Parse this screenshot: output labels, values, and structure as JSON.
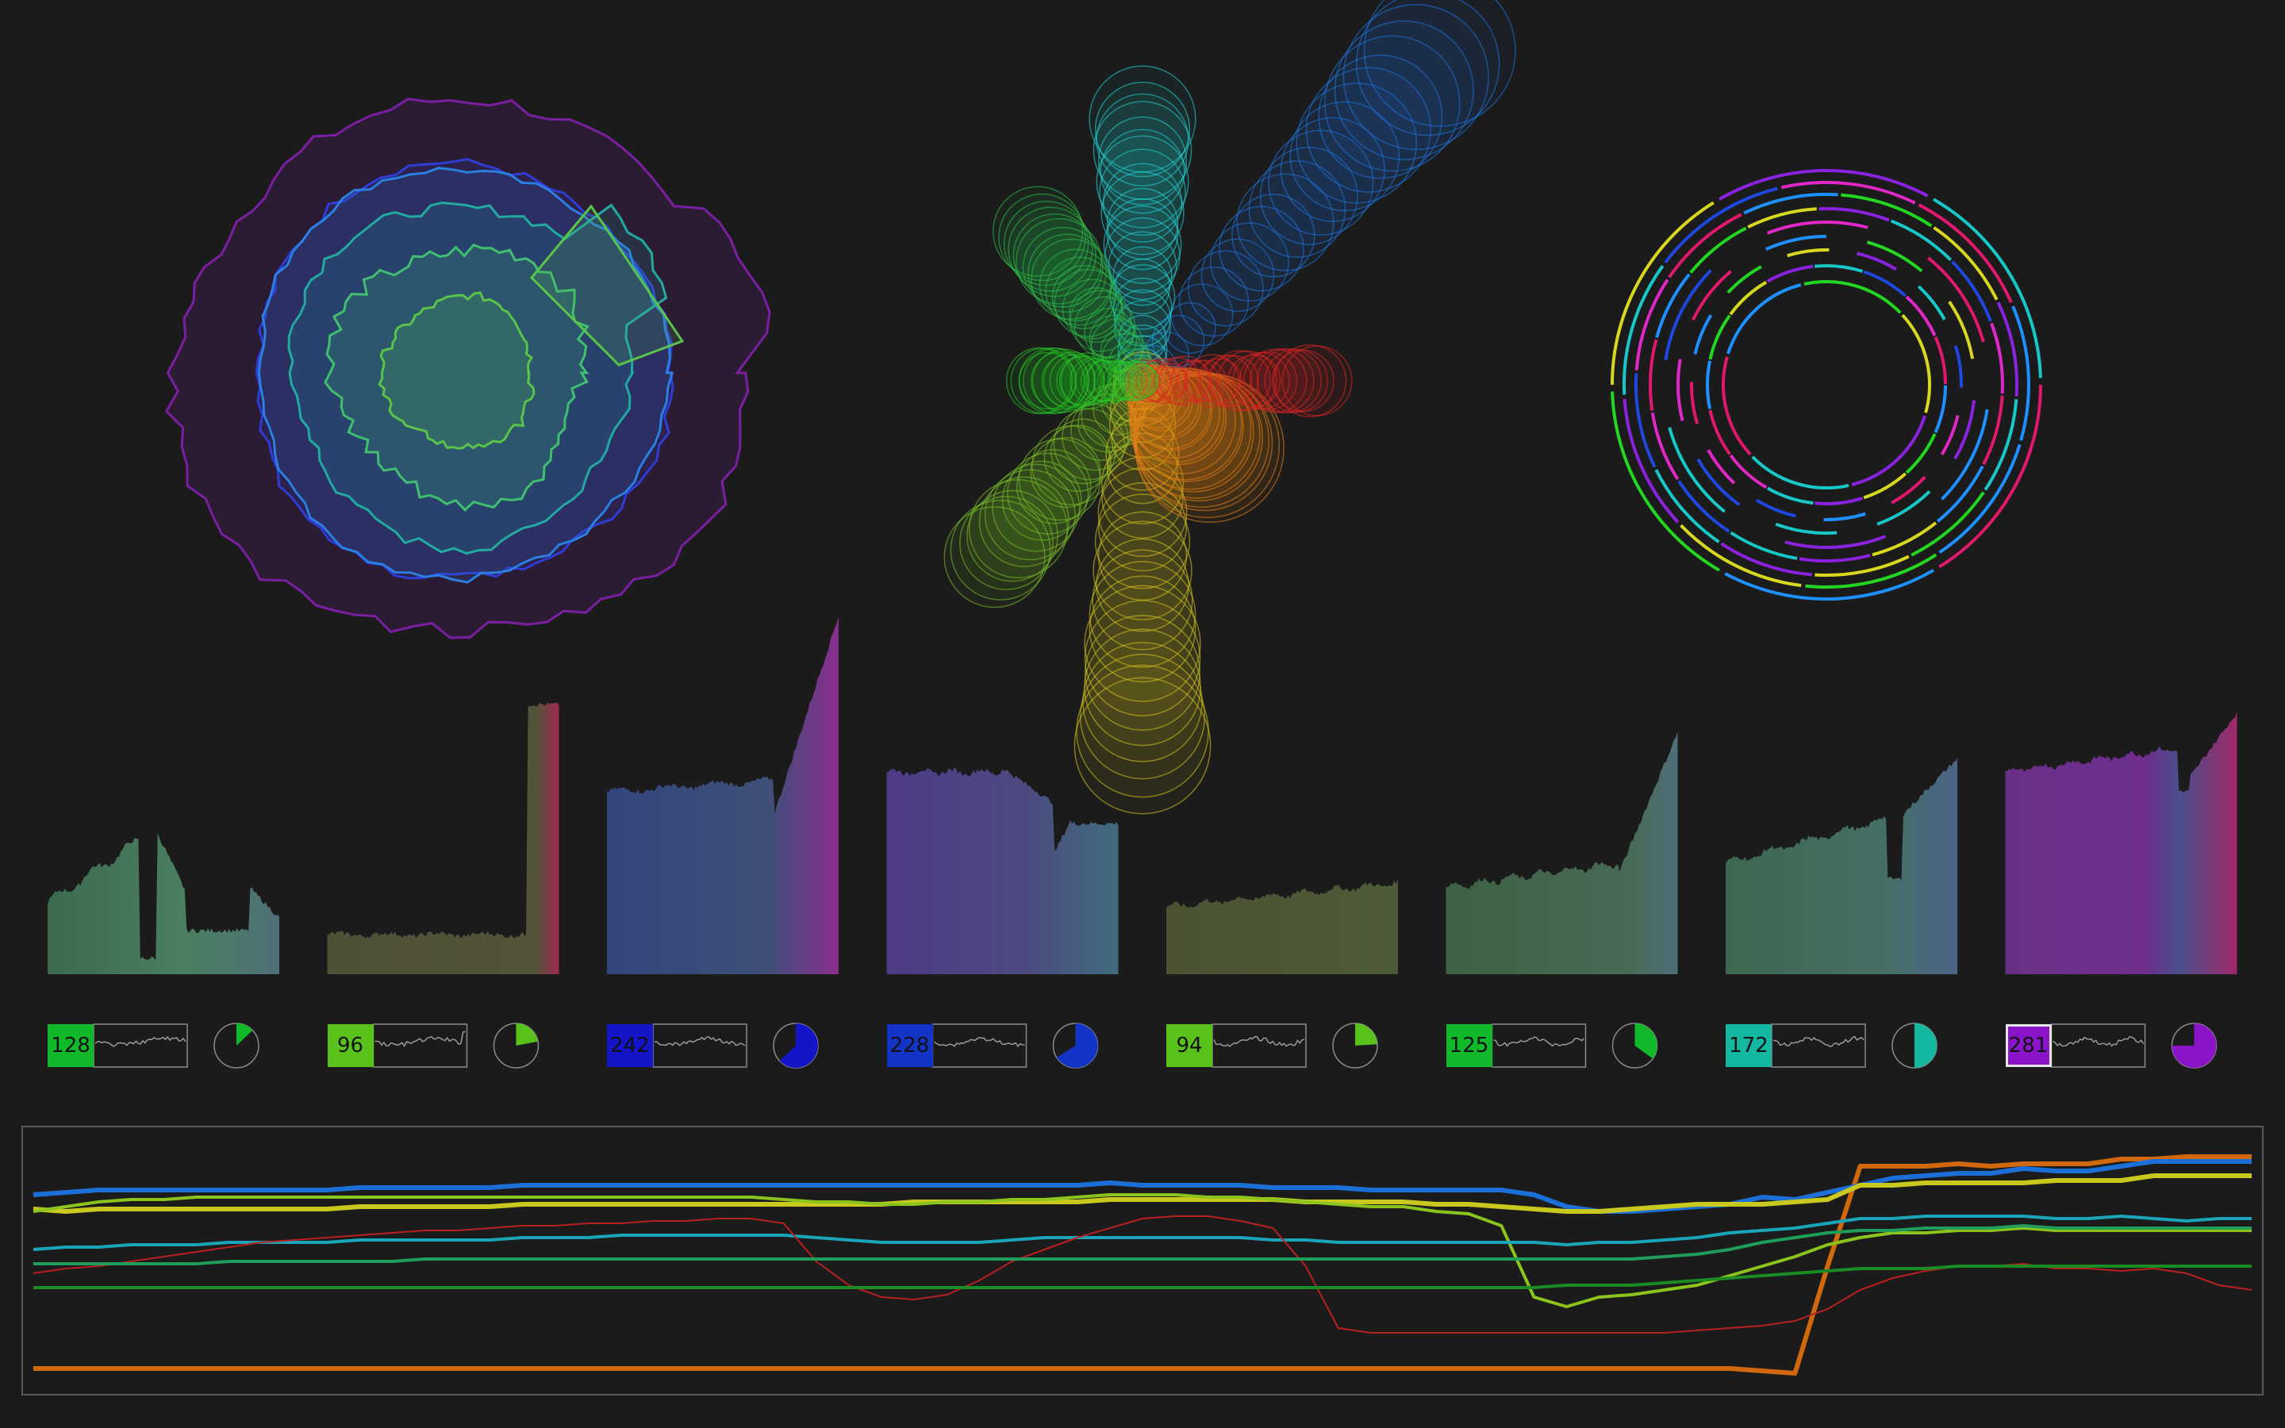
{
  "colors": {
    "background": "#1b1b1b",
    "panel_border": "#5a5a5a",
    "tile_border": "#8a8a8a"
  },
  "viz_panel": {
    "radial_layers": [
      "#7b1fa2",
      "#2f3dd6",
      "#2a7fe0",
      "#22a9a0",
      "#3fbf6f",
      "#59c44a"
    ],
    "starburst_arms": [
      {
        "color": "#1e78e6",
        "name": "blue-arm"
      },
      {
        "color": "#22d6d6",
        "name": "cyan-arm"
      },
      {
        "color": "#2fbf4c",
        "name": "green-arm"
      },
      {
        "color": "#7cc12a",
        "name": "lime-arm"
      },
      {
        "color": "#d6c81f",
        "name": "yellow-arm"
      },
      {
        "color": "#e8801c",
        "name": "orange-arm"
      },
      {
        "color": "#e02424",
        "name": "red-arm"
      },
      {
        "color": "#26c626",
        "name": "bright-green-arm"
      }
    ],
    "ring_colors": [
      "#e0186e",
      "#1e90ff",
      "#22d622",
      "#d8d820",
      "#8a22e0",
      "#18c8c8",
      "#1e48e0",
      "#e028c8"
    ]
  },
  "channels": [
    {
      "value": "128",
      "color": "#11b82a",
      "fill": 0.13
    },
    {
      "value": "96",
      "color": "#58c21a",
      "fill": 0.22
    },
    {
      "value": "242",
      "color": "#1414c8",
      "fill": 0.63
    },
    {
      "value": "228",
      "color": "#1434c8",
      "fill": 0.66
    },
    {
      "value": "94",
      "color": "#58c21a",
      "fill": 0.24
    },
    {
      "value": "125",
      "color": "#11b82a",
      "fill": 0.35
    },
    {
      "value": "172",
      "color": "#14b8a0",
      "fill": 0.5
    },
    {
      "value": "281",
      "color": "#8a14c8",
      "fill": 0.75
    }
  ],
  "timeline": {
    "series": [
      {
        "color": "#d2680e",
        "values": [
          0.05,
          0.05,
          0.05,
          0.05,
          0.05,
          0.05,
          0.05,
          0.05,
          0.05,
          0.05,
          0.05,
          0.05,
          0.05,
          0.05,
          0.05,
          0.05,
          0.05,
          0.05,
          0.05,
          0.05,
          0.05,
          0.05,
          0.05,
          0.05,
          0.05,
          0.05,
          0.05,
          0.05,
          0.05,
          0.05,
          0.05,
          0.05,
          0.05,
          0.05,
          0.05,
          0.05,
          0.05,
          0.05,
          0.05,
          0.05,
          0.05,
          0.05,
          0.05,
          0.05,
          0.05,
          0.05,
          0.05,
          0.05,
          0.05,
          0.05,
          0.05,
          0.05,
          0.05,
          0.04,
          0.03,
          0.48,
          0.9,
          0.9,
          0.9,
          0.91,
          0.9,
          0.91,
          0.91,
          0.91,
          0.93,
          0.93,
          0.94,
          0.94,
          0.94
        ]
      },
      {
        "color": "#1c6fd6",
        "values": [
          0.78,
          0.79,
          0.8,
          0.8,
          0.8,
          0.8,
          0.8,
          0.8,
          0.8,
          0.8,
          0.81,
          0.81,
          0.81,
          0.81,
          0.81,
          0.82,
          0.82,
          0.82,
          0.82,
          0.82,
          0.82,
          0.82,
          0.82,
          0.82,
          0.82,
          0.82,
          0.82,
          0.82,
          0.82,
          0.82,
          0.82,
          0.82,
          0.82,
          0.83,
          0.82,
          0.82,
          0.82,
          0.82,
          0.81,
          0.81,
          0.81,
          0.8,
          0.8,
          0.8,
          0.8,
          0.8,
          0.78,
          0.73,
          0.71,
          0.71,
          0.72,
          0.73,
          0.74,
          0.77,
          0.76,
          0.79,
          0.82,
          0.85,
          0.86,
          0.87,
          0.87,
          0.89,
          0.88,
          0.88,
          0.9,
          0.92,
          0.92,
          0.92,
          0.92
        ]
      },
      {
        "color": "#c8c81e",
        "values": [
          0.72,
          0.71,
          0.72,
          0.72,
          0.72,
          0.72,
          0.72,
          0.72,
          0.72,
          0.72,
          0.73,
          0.73,
          0.73,
          0.73,
          0.73,
          0.74,
          0.74,
          0.74,
          0.74,
          0.74,
          0.74,
          0.74,
          0.74,
          0.74,
          0.74,
          0.74,
          0.74,
          0.75,
          0.75,
          0.75,
          0.75,
          0.75,
          0.75,
          0.76,
          0.76,
          0.76,
          0.76,
          0.76,
          0.76,
          0.75,
          0.75,
          0.75,
          0.75,
          0.74,
          0.74,
          0.73,
          0.72,
          0.71,
          0.71,
          0.72,
          0.73,
          0.74,
          0.74,
          0.74,
          0.75,
          0.76,
          0.82,
          0.82,
          0.83,
          0.83,
          0.83,
          0.83,
          0.84,
          0.84,
          0.84,
          0.86,
          0.86,
          0.86,
          0.86
        ]
      },
      {
        "color": "#8cc41e",
        "values": [
          0.71,
          0.73,
          0.75,
          0.76,
          0.76,
          0.77,
          0.77,
          0.77,
          0.77,
          0.77,
          0.77,
          0.77,
          0.77,
          0.77,
          0.77,
          0.77,
          0.77,
          0.77,
          0.77,
          0.77,
          0.77,
          0.77,
          0.77,
          0.76,
          0.75,
          0.75,
          0.74,
          0.74,
          0.75,
          0.75,
          0.76,
          0.76,
          0.77,
          0.78,
          0.78,
          0.78,
          0.77,
          0.77,
          0.76,
          0.75,
          0.74,
          0.73,
          0.73,
          0.71,
          0.7,
          0.65,
          0.35,
          0.31,
          0.35,
          0.36,
          0.38,
          0.4,
          0.44,
          0.48,
          0.52,
          0.57,
          0.6,
          0.62,
          0.62,
          0.63,
          0.63,
          0.64,
          0.63,
          0.63,
          0.63,
          0.63,
          0.63,
          0.63,
          0.63
        ]
      },
      {
        "color": "#1aa6b8",
        "values": [
          0.55,
          0.56,
          0.56,
          0.57,
          0.57,
          0.57,
          0.58,
          0.58,
          0.58,
          0.58,
          0.59,
          0.59,
          0.59,
          0.59,
          0.59,
          0.6,
          0.6,
          0.6,
          0.61,
          0.61,
          0.61,
          0.61,
          0.61,
          0.61,
          0.6,
          0.59,
          0.58,
          0.58,
          0.58,
          0.58,
          0.59,
          0.6,
          0.6,
          0.6,
          0.6,
          0.6,
          0.6,
          0.6,
          0.59,
          0.59,
          0.58,
          0.58,
          0.58,
          0.58,
          0.58,
          0.58,
          0.58,
          0.57,
          0.58,
          0.58,
          0.59,
          0.6,
          0.62,
          0.63,
          0.64,
          0.66,
          0.68,
          0.68,
          0.69,
          0.69,
          0.69,
          0.69,
          0.68,
          0.68,
          0.69,
          0.68,
          0.67,
          0.68,
          0.68
        ]
      },
      {
        "color": "#b82020",
        "values": [
          0.45,
          0.47,
          0.48,
          0.5,
          0.52,
          0.54,
          0.56,
          0.58,
          0.59,
          0.6,
          0.61,
          0.62,
          0.63,
          0.63,
          0.64,
          0.65,
          0.65,
          0.66,
          0.66,
          0.67,
          0.67,
          0.68,
          0.68,
          0.66,
          0.5,
          0.4,
          0.35,
          0.34,
          0.36,
          0.42,
          0.5,
          0.55,
          0.6,
          0.64,
          0.68,
          0.69,
          0.69,
          0.67,
          0.64,
          0.48,
          0.22,
          0.2,
          0.2,
          0.2,
          0.2,
          0.2,
          0.2,
          0.2,
          0.2,
          0.2,
          0.2,
          0.21,
          0.22,
          0.23,
          0.25,
          0.3,
          0.38,
          0.43,
          0.46,
          0.48,
          0.48,
          0.49,
          0.47,
          0.47,
          0.46,
          0.47,
          0.45,
          0.4,
          0.38
        ]
      },
      {
        "color": "#1e9e5a",
        "values": [
          0.49,
          0.49,
          0.49,
          0.49,
          0.49,
          0.49,
          0.5,
          0.5,
          0.5,
          0.5,
          0.5,
          0.5,
          0.51,
          0.51,
          0.51,
          0.51,
          0.51,
          0.51,
          0.51,
          0.51,
          0.51,
          0.51,
          0.51,
          0.51,
          0.51,
          0.51,
          0.51,
          0.51,
          0.51,
          0.51,
          0.51,
          0.51,
          0.51,
          0.51,
          0.51,
          0.51,
          0.51,
          0.51,
          0.51,
          0.51,
          0.51,
          0.51,
          0.51,
          0.51,
          0.51,
          0.51,
          0.51,
          0.51,
          0.51,
          0.51,
          0.52,
          0.53,
          0.55,
          0.58,
          0.6,
          0.62,
          0.63,
          0.63,
          0.64,
          0.64,
          0.64,
          0.65,
          0.64,
          0.64,
          0.64,
          0.64,
          0.64,
          0.64,
          0.64
        ]
      },
      {
        "color": "#1a8c24",
        "values": [
          0.39,
          0.39,
          0.39,
          0.39,
          0.39,
          0.39,
          0.39,
          0.39,
          0.39,
          0.39,
          0.39,
          0.39,
          0.39,
          0.39,
          0.39,
          0.39,
          0.39,
          0.39,
          0.39,
          0.39,
          0.39,
          0.39,
          0.39,
          0.39,
          0.39,
          0.39,
          0.39,
          0.39,
          0.39,
          0.39,
          0.39,
          0.39,
          0.39,
          0.39,
          0.39,
          0.39,
          0.39,
          0.39,
          0.39,
          0.39,
          0.39,
          0.39,
          0.39,
          0.39,
          0.39,
          0.39,
          0.39,
          0.4,
          0.4,
          0.4,
          0.41,
          0.42,
          0.43,
          0.44,
          0.45,
          0.46,
          0.47,
          0.47,
          0.47,
          0.48,
          0.48,
          0.48,
          0.48,
          0.48,
          0.48,
          0.48,
          0.48,
          0.48,
          0.48
        ]
      }
    ]
  }
}
